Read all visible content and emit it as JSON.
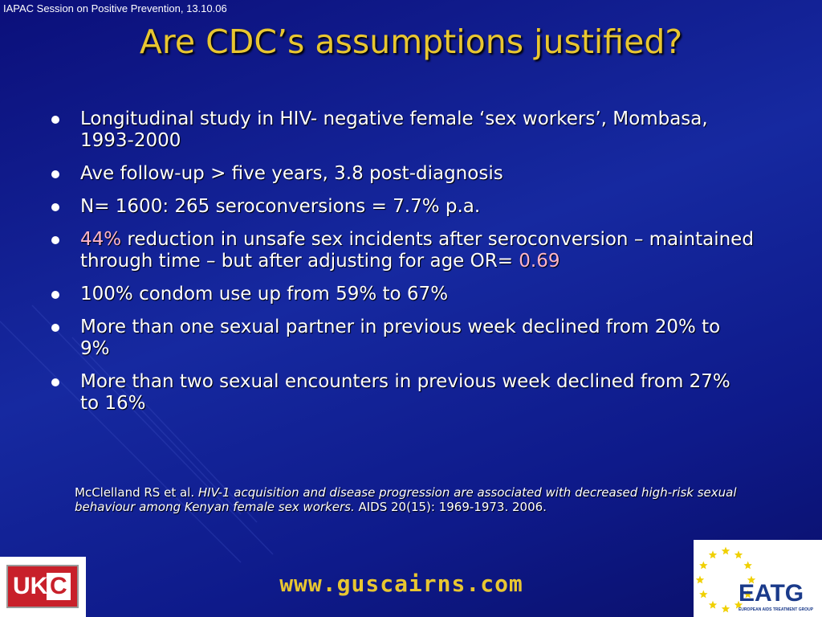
{
  "header": {
    "note": "IAPAC Session on Positive Prevention, 13.10.06",
    "title": "Are CDC’s assumptions justified?"
  },
  "bullets": [
    [
      "Longitudinal study in HIV- negative female ‘sex workers’, Mombasa, 1993-2000"
    ],
    [
      "Ave follow-up > five years, 3.8 post-diagnosis"
    ],
    [
      "N= 1600: 265 seroconversions = 7.7% p.a."
    ],
    [
      "44%",
      " reduction in unsafe sex incidents after seroconversion – maintained through time – but after adjusting for age OR= ",
      "0.69"
    ],
    [
      "100% condom use up from 59% to 67%"
    ],
    [
      "More than one sexual partner in previous week declined from 20% to 9%"
    ],
    [
      "More than two sexual encounters in previous week declined from 27% to 16%"
    ]
  ],
  "citation": [
    "McClelland RS et al. ",
    "HIV-1 acquisition and disease progression are associated with decreased high-risk sexual behaviour among Kenyan female sex workers.",
    " AIDS 20(15): 1969-1973. 2006."
  ],
  "footer": {
    "url": "www.guscairns.com"
  },
  "logos": {
    "left": [
      "UK",
      "C"
    ],
    "right": [
      "EATG",
      "EUROPEAN AIDS TREATMENT GROUP"
    ]
  }
}
